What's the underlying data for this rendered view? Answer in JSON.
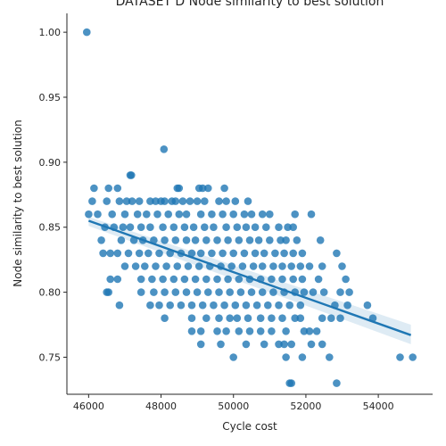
{
  "chart_data": {
    "type": "scatter",
    "title": "DATASET D Node similarity to best solution",
    "xlabel": "Cycle cost",
    "ylabel": "Node similarity to best solution",
    "xlim": [
      45400,
      55500
    ],
    "ylim": [
      0.7215,
      1.0145
    ],
    "xticks": [
      46000,
      48000,
      50000,
      52000,
      54000
    ],
    "yticks": [
      0.75,
      0.8,
      0.85,
      0.9,
      0.95,
      1.0
    ],
    "xtick_labels": [
      "46000",
      "48000",
      "50000",
      "52000",
      "54000"
    ],
    "ytick_labels": [
      "0.75",
      "0.80",
      "0.85",
      "0.90",
      "0.95",
      "1.00"
    ],
    "grid": false,
    "legend": "none",
    "point_color": "#1f77b4",
    "regression": {
      "x": [
        46000,
        54900
      ],
      "y": [
        0.855,
        0.767
      ],
      "ci_upper": [
        0.858,
        0.775
      ],
      "ci_lower": [
        0.851,
        0.76
      ]
    },
    "points": [
      [
        45950,
        1.0
      ],
      [
        48080,
        0.91
      ],
      [
        47150,
        0.89
      ],
      [
        47180,
        0.89
      ],
      [
        46150,
        0.88
      ],
      [
        46550,
        0.88
      ],
      [
        46800,
        0.88
      ],
      [
        48450,
        0.88
      ],
      [
        48500,
        0.88
      ],
      [
        49050,
        0.88
      ],
      [
        49150,
        0.88
      ],
      [
        49300,
        0.88
      ],
      [
        49750,
        0.88
      ],
      [
        46100,
        0.87
      ],
      [
        46500,
        0.87
      ],
      [
        46850,
        0.87
      ],
      [
        47050,
        0.87
      ],
      [
        47200,
        0.87
      ],
      [
        47400,
        0.87
      ],
      [
        47700,
        0.87
      ],
      [
        47850,
        0.87
      ],
      [
        48000,
        0.87
      ],
      [
        48100,
        0.87
      ],
      [
        48300,
        0.87
      ],
      [
        48400,
        0.87
      ],
      [
        48600,
        0.87
      ],
      [
        48800,
        0.87
      ],
      [
        49000,
        0.87
      ],
      [
        49200,
        0.87
      ],
      [
        49600,
        0.87
      ],
      [
        49800,
        0.87
      ],
      [
        50050,
        0.87
      ],
      [
        50400,
        0.87
      ],
      [
        46000,
        0.86
      ],
      [
        46250,
        0.86
      ],
      [
        46650,
        0.86
      ],
      [
        47000,
        0.86
      ],
      [
        47350,
        0.86
      ],
      [
        47600,
        0.86
      ],
      [
        47900,
        0.86
      ],
      [
        48200,
        0.86
      ],
      [
        48500,
        0.86
      ],
      [
        48700,
        0.86
      ],
      [
        49100,
        0.86
      ],
      [
        49400,
        0.86
      ],
      [
        49700,
        0.86
      ],
      [
        50000,
        0.86
      ],
      [
        50300,
        0.86
      ],
      [
        50500,
        0.86
      ],
      [
        50800,
        0.86
      ],
      [
        51000,
        0.86
      ],
      [
        51700,
        0.86
      ],
      [
        52150,
        0.86
      ],
      [
        46450,
        0.85
      ],
      [
        46700,
        0.85
      ],
      [
        46950,
        0.85
      ],
      [
        47150,
        0.85
      ],
      [
        47450,
        0.85
      ],
      [
        47700,
        0.85
      ],
      [
        48050,
        0.85
      ],
      [
        48350,
        0.85
      ],
      [
        48650,
        0.85
      ],
      [
        48900,
        0.85
      ],
      [
        49200,
        0.85
      ],
      [
        49450,
        0.85
      ],
      [
        49800,
        0.85
      ],
      [
        50100,
        0.85
      ],
      [
        50350,
        0.85
      ],
      [
        50600,
        0.85
      ],
      [
        50900,
        0.85
      ],
      [
        51250,
        0.85
      ],
      [
        51500,
        0.85
      ],
      [
        51650,
        0.85
      ],
      [
        46350,
        0.84
      ],
      [
        46900,
        0.84
      ],
      [
        47250,
        0.84
      ],
      [
        47500,
        0.84
      ],
      [
        47800,
        0.84
      ],
      [
        48100,
        0.84
      ],
      [
        48400,
        0.84
      ],
      [
        48700,
        0.84
      ],
      [
        48950,
        0.84
      ],
      [
        49250,
        0.84
      ],
      [
        49550,
        0.84
      ],
      [
        49850,
        0.84
      ],
      [
        50150,
        0.84
      ],
      [
        50450,
        0.84
      ],
      [
        50700,
        0.84
      ],
      [
        51000,
        0.84
      ],
      [
        51300,
        0.84
      ],
      [
        51450,
        0.84
      ],
      [
        51750,
        0.84
      ],
      [
        52400,
        0.84
      ],
      [
        46400,
        0.83
      ],
      [
        46600,
        0.83
      ],
      [
        46800,
        0.83
      ],
      [
        47100,
        0.83
      ],
      [
        47400,
        0.83
      ],
      [
        47650,
        0.83
      ],
      [
        47950,
        0.83
      ],
      [
        48250,
        0.83
      ],
      [
        48550,
        0.83
      ],
      [
        48850,
        0.83
      ],
      [
        49100,
        0.83
      ],
      [
        49400,
        0.83
      ],
      [
        49700,
        0.83
      ],
      [
        50000,
        0.83
      ],
      [
        50300,
        0.83
      ],
      [
        50600,
        0.83
      ],
      [
        50850,
        0.83
      ],
      [
        51150,
        0.83
      ],
      [
        51400,
        0.83
      ],
      [
        51650,
        0.83
      ],
      [
        51900,
        0.83
      ],
      [
        52850,
        0.83
      ],
      [
        47000,
        0.82
      ],
      [
        47300,
        0.82
      ],
      [
        47550,
        0.82
      ],
      [
        47850,
        0.82
      ],
      [
        48150,
        0.82
      ],
      [
        48450,
        0.82
      ],
      [
        48750,
        0.82
      ],
      [
        49050,
        0.82
      ],
      [
        49350,
        0.82
      ],
      [
        49650,
        0.82
      ],
      [
        49950,
        0.82
      ],
      [
        50250,
        0.82
      ],
      [
        50550,
        0.82
      ],
      [
        50800,
        0.82
      ],
      [
        51100,
        0.82
      ],
      [
        51350,
        0.82
      ],
      [
        51600,
        0.82
      ],
      [
        51850,
        0.82
      ],
      [
        52100,
        0.82
      ],
      [
        52450,
        0.82
      ],
      [
        53000,
        0.82
      ],
      [
        46600,
        0.81
      ],
      [
        46800,
        0.81
      ],
      [
        47450,
        0.81
      ],
      [
        47750,
        0.81
      ],
      [
        48050,
        0.81
      ],
      [
        48350,
        0.81
      ],
      [
        48650,
        0.81
      ],
      [
        48950,
        0.81
      ],
      [
        49250,
        0.81
      ],
      [
        49550,
        0.81
      ],
      [
        49850,
        0.81
      ],
      [
        50150,
        0.81
      ],
      [
        50450,
        0.81
      ],
      [
        50750,
        0.81
      ],
      [
        51050,
        0.81
      ],
      [
        51350,
        0.81
      ],
      [
        51650,
        0.81
      ],
      [
        51900,
        0.81
      ],
      [
        52350,
        0.81
      ],
      [
        53100,
        0.81
      ],
      [
        46500,
        0.8
      ],
      [
        46550,
        0.8
      ],
      [
        47450,
        0.8
      ],
      [
        47800,
        0.8
      ],
      [
        48100,
        0.8
      ],
      [
        48400,
        0.8
      ],
      [
        48700,
        0.8
      ],
      [
        49000,
        0.8
      ],
      [
        49300,
        0.8
      ],
      [
        49600,
        0.8
      ],
      [
        49900,
        0.8
      ],
      [
        50200,
        0.8
      ],
      [
        50500,
        0.8
      ],
      [
        50800,
        0.8
      ],
      [
        51100,
        0.8
      ],
      [
        51400,
        0.8
      ],
      [
        51700,
        0.8
      ],
      [
        51950,
        0.8
      ],
      [
        52200,
        0.8
      ],
      [
        52500,
        0.8
      ],
      [
        52950,
        0.8
      ],
      [
        53200,
        0.8
      ],
      [
        46850,
        0.79
      ],
      [
        47700,
        0.79
      ],
      [
        47950,
        0.79
      ],
      [
        48250,
        0.79
      ],
      [
        48550,
        0.79
      ],
      [
        48850,
        0.79
      ],
      [
        49150,
        0.79
      ],
      [
        49450,
        0.79
      ],
      [
        49750,
        0.79
      ],
      [
        50050,
        0.79
      ],
      [
        50350,
        0.79
      ],
      [
        50650,
        0.79
      ],
      [
        50950,
        0.79
      ],
      [
        51250,
        0.79
      ],
      [
        51550,
        0.79
      ],
      [
        51850,
        0.79
      ],
      [
        52800,
        0.79
      ],
      [
        53150,
        0.79
      ],
      [
        53700,
        0.79
      ],
      [
        48100,
        0.78
      ],
      [
        48850,
        0.78
      ],
      [
        49250,
        0.78
      ],
      [
        49600,
        0.78
      ],
      [
        49900,
        0.78
      ],
      [
        50100,
        0.78
      ],
      [
        50400,
        0.78
      ],
      [
        50750,
        0.78
      ],
      [
        51050,
        0.78
      ],
      [
        51350,
        0.78
      ],
      [
        51700,
        0.78
      ],
      [
        51850,
        0.78
      ],
      [
        52450,
        0.78
      ],
      [
        52700,
        0.78
      ],
      [
        52950,
        0.78
      ],
      [
        53850,
        0.78
      ],
      [
        48850,
        0.77
      ],
      [
        49100,
        0.77
      ],
      [
        49550,
        0.77
      ],
      [
        49800,
        0.77
      ],
      [
        50150,
        0.77
      ],
      [
        50450,
        0.77
      ],
      [
        50750,
        0.77
      ],
      [
        51050,
        0.77
      ],
      [
        51450,
        0.77
      ],
      [
        51950,
        0.77
      ],
      [
        52100,
        0.77
      ],
      [
        52300,
        0.77
      ],
      [
        49100,
        0.76
      ],
      [
        49650,
        0.76
      ],
      [
        50350,
        0.76
      ],
      [
        50850,
        0.76
      ],
      [
        51250,
        0.76
      ],
      [
        51400,
        0.76
      ],
      [
        51600,
        0.76
      ],
      [
        52150,
        0.76
      ],
      [
        52450,
        0.76
      ],
      [
        50000,
        0.75
      ],
      [
        51450,
        0.75
      ],
      [
        51900,
        0.75
      ],
      [
        52650,
        0.75
      ],
      [
        54600,
        0.75
      ],
      [
        54950,
        0.75
      ],
      [
        51550,
        0.73
      ],
      [
        51600,
        0.73
      ],
      [
        52850,
        0.73
      ]
    ]
  }
}
